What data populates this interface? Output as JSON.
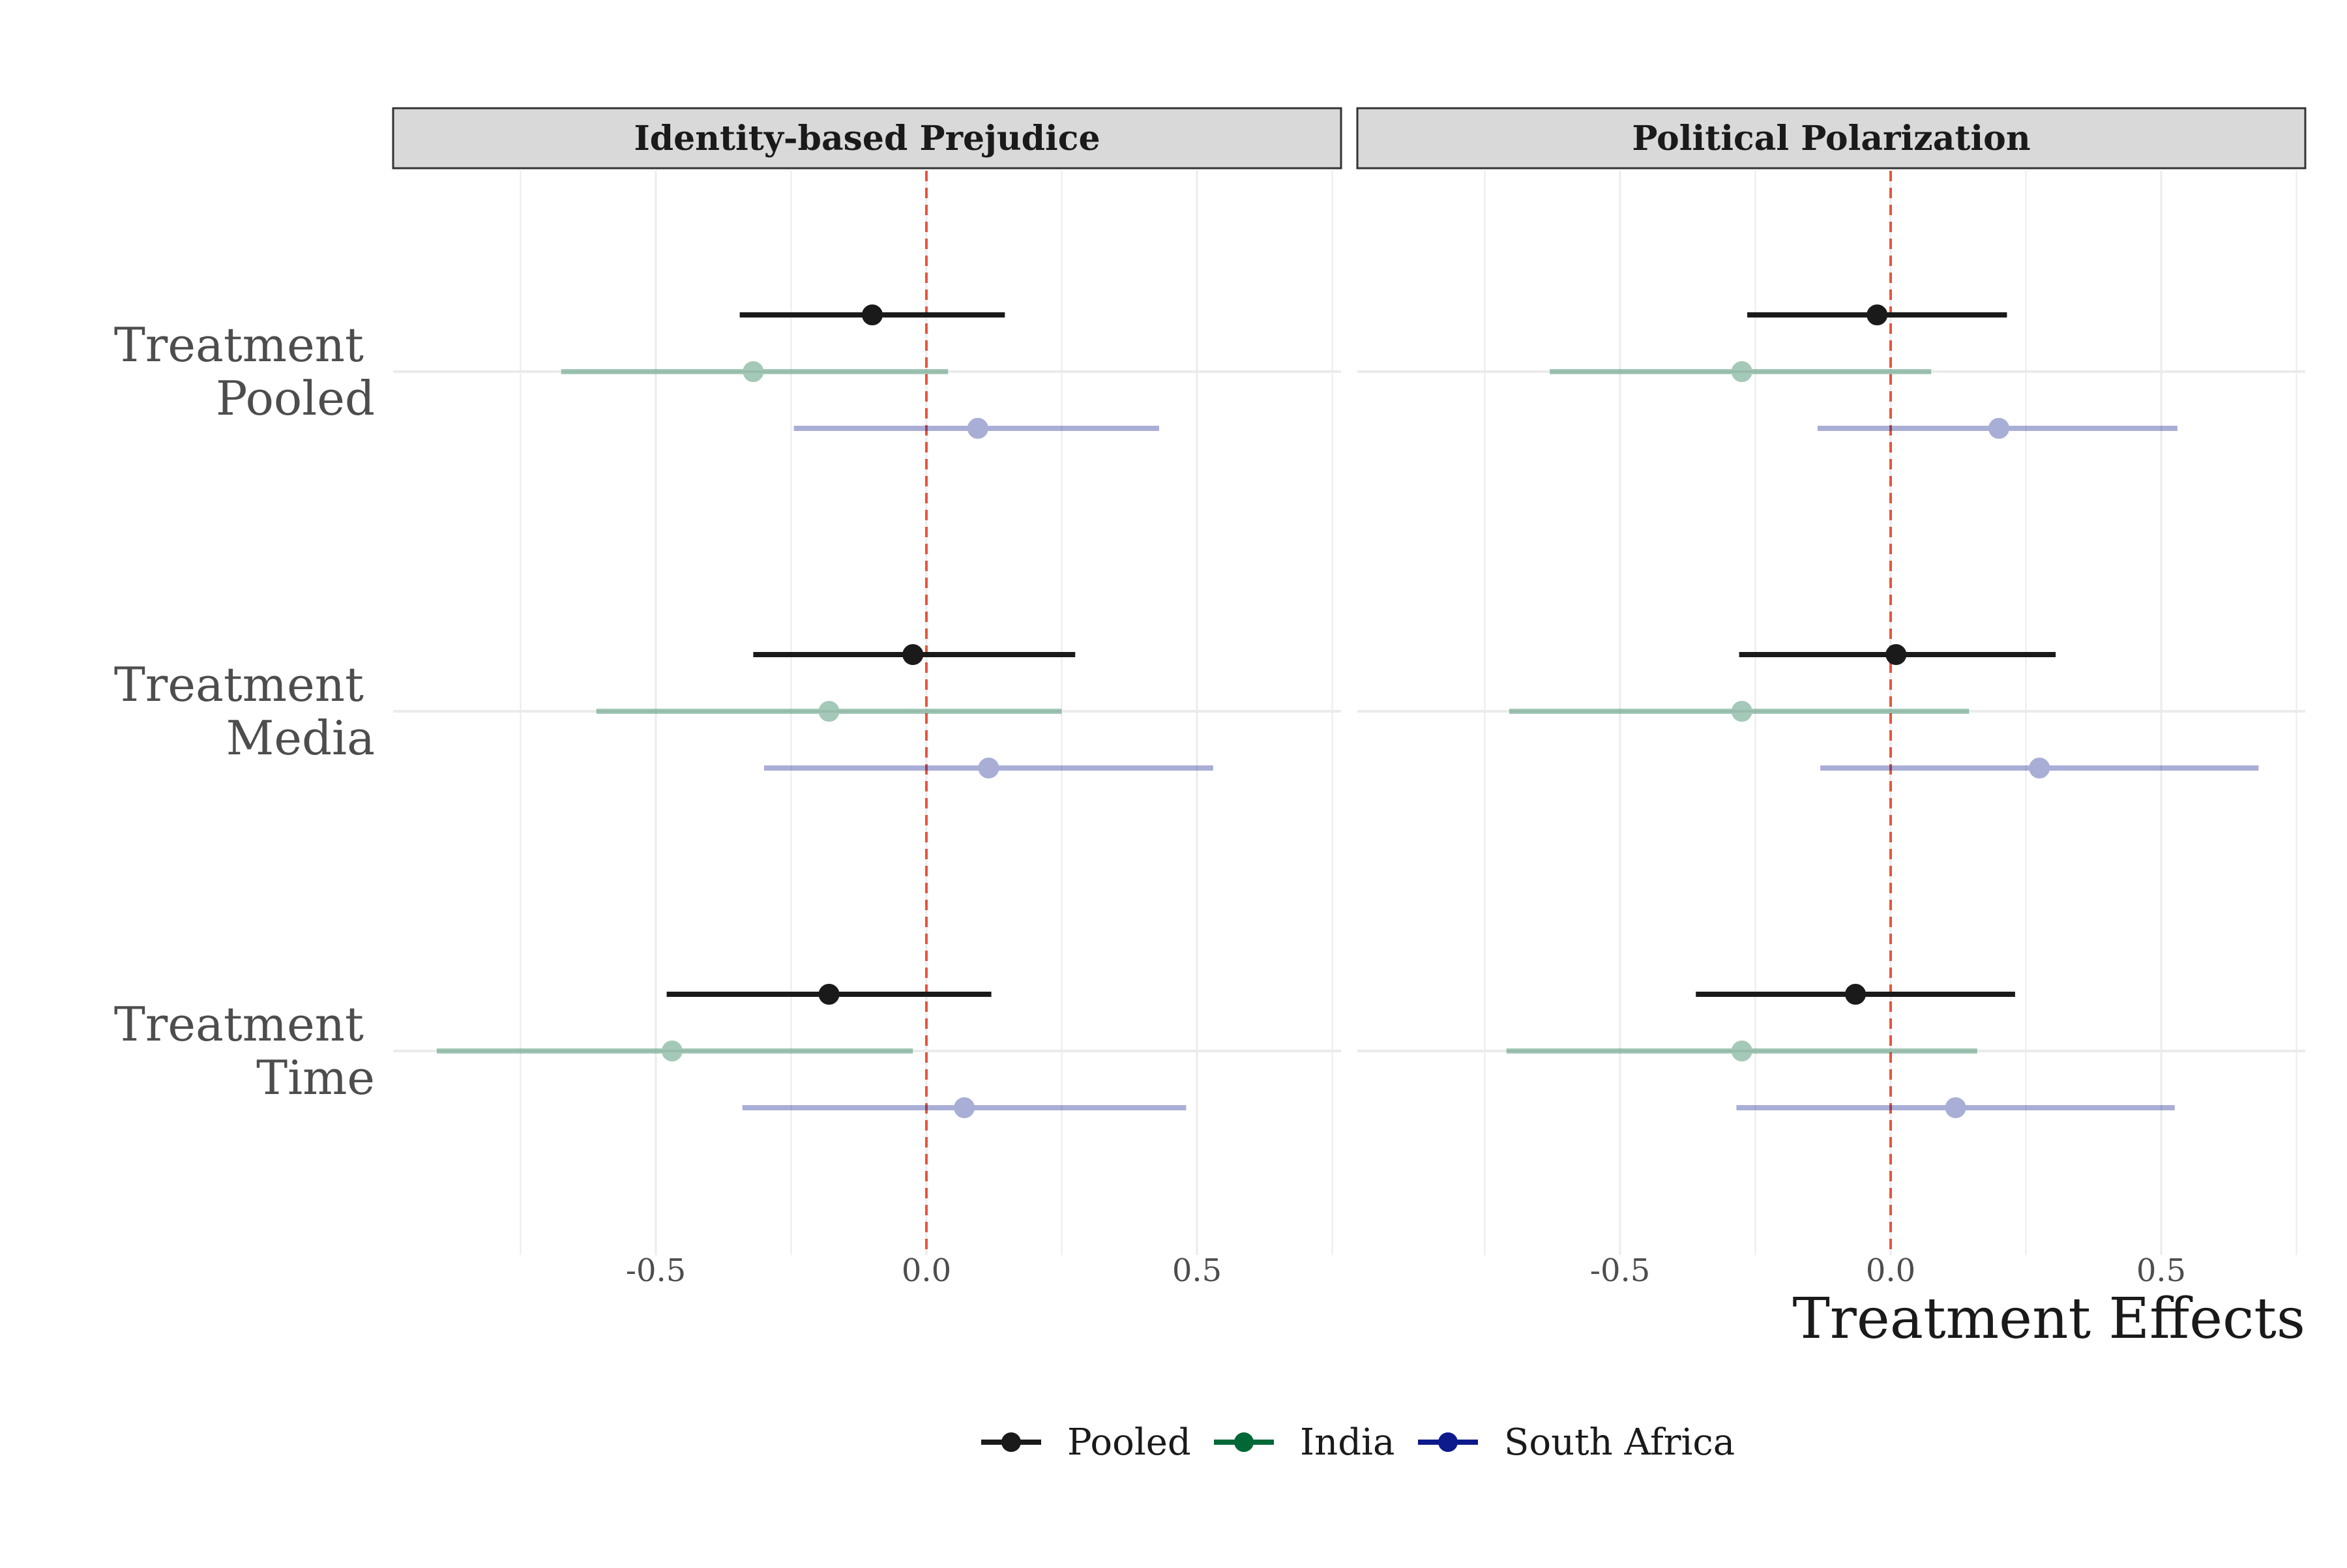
{
  "chart_data": {
    "type": "forest",
    "xlabel": "Treatment Effects",
    "ylabel": "",
    "xlim": [
      -0.75,
      1.0
    ],
    "x_ticks": [
      -0.5,
      0.0,
      0.5
    ],
    "x_tick_labels": [
      "-0.5",
      "0.0",
      "0.5"
    ],
    "reference_line": 0.0,
    "grid": true,
    "legend_position": "bottom",
    "categories": [
      [
        "Treatment",
        "Pooled"
      ],
      [
        "Treatment",
        "Media"
      ],
      [
        "Treatment",
        "Time"
      ]
    ],
    "colors": {
      "Pooled": "#1a1a1a",
      "India": "#006837",
      "South Africa": "#0d1a8c",
      "reference": "#e8553a",
      "strip_bg": "#d9d9d9",
      "grid": "#ebebeb"
    },
    "series": [
      {
        "name": "Pooled"
      },
      {
        "name": "India"
      },
      {
        "name": "South Africa"
      }
    ],
    "panels": [
      {
        "title": "Identity-based Prejudice",
        "estimates": {
          "Pooled": [
            {
              "estimate": -0.1,
              "lower": -0.345,
              "upper": 0.145
            },
            {
              "estimate": -0.025,
              "lower": -0.32,
              "upper": 0.275
            },
            {
              "estimate": -0.18,
              "lower": -0.48,
              "upper": 0.12
            }
          ],
          "India": [
            {
              "estimate": -0.32,
              "lower": -0.675,
              "upper": 0.04
            },
            {
              "estimate": -0.18,
              "lower": -0.61,
              "upper": 0.25
            },
            {
              "estimate": -0.47,
              "lower": -0.905,
              "upper": -0.025
            }
          ],
          "South Africa": [
            {
              "estimate": 0.095,
              "lower": -0.245,
              "upper": 0.43
            },
            {
              "estimate": 0.115,
              "lower": -0.3,
              "upper": 0.53
            },
            {
              "estimate": 0.07,
              "lower": -0.34,
              "upper": 0.48
            }
          ]
        }
      },
      {
        "title": "Political Polarization",
        "estimates": {
          "Pooled": [
            {
              "estimate": -0.025,
              "lower": -0.265,
              "upper": 0.215
            },
            {
              "estimate": 0.01,
              "lower": -0.28,
              "upper": 0.305
            },
            {
              "estimate": -0.065,
              "lower": -0.36,
              "upper": 0.23
            }
          ],
          "India": [
            {
              "estimate": -0.275,
              "lower": -0.63,
              "upper": 0.075
            },
            {
              "estimate": -0.275,
              "lower": -0.705,
              "upper": 0.145
            },
            {
              "estimate": -0.275,
              "lower": -0.71,
              "upper": 0.16
            }
          ],
          "South Africa": [
            {
              "estimate": 0.2,
              "lower": -0.135,
              "upper": 0.53
            },
            {
              "estimate": 0.275,
              "lower": -0.13,
              "upper": 0.68
            },
            {
              "estimate": 0.12,
              "lower": -0.285,
              "upper": 0.525
            }
          ]
        }
      }
    ]
  }
}
